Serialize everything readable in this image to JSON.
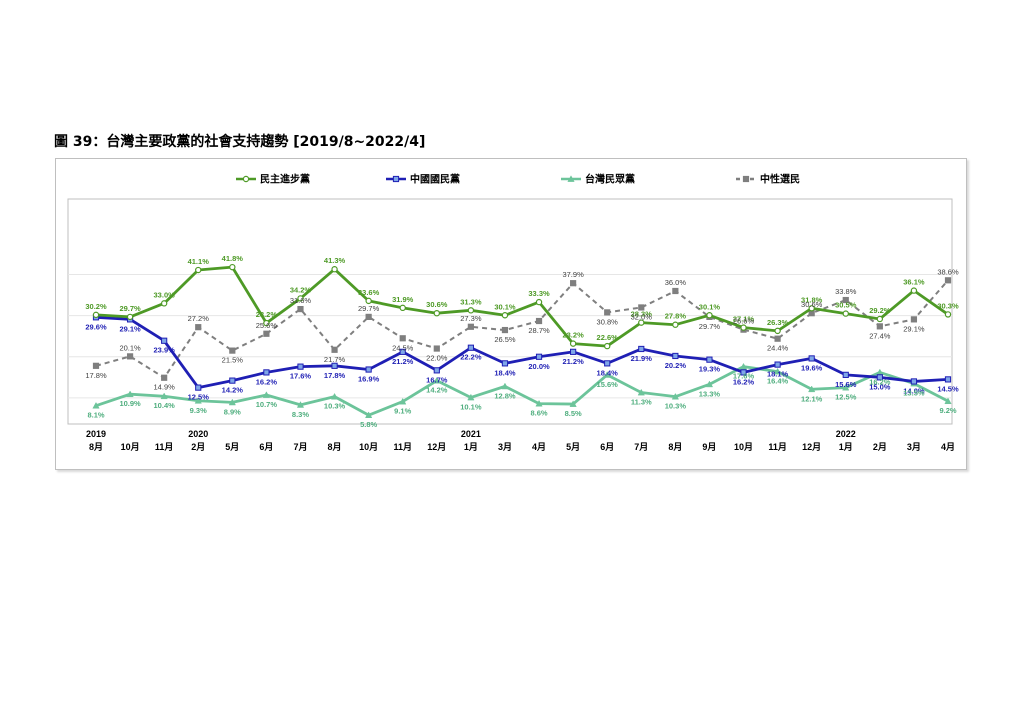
{
  "figure": {
    "title": "圖 39：台灣主要政黨的社會支持趨勢  [2019/8~2022/4]"
  },
  "colors": {
    "dpp": "#4e9a26",
    "kmt": "#1f1fb4",
    "tpp": "#6cc49a",
    "neutral": "#7f7f7f"
  },
  "chart_data": {
    "type": "line",
    "categories": [
      "8月",
      "10月",
      "11月",
      "2月",
      "5月",
      "6月",
      "7月",
      "8月",
      "10月",
      "11月",
      "12月",
      "1月",
      "3月",
      "4月",
      "5月",
      "6月",
      "7月",
      "8月",
      "9月",
      "10月",
      "11月",
      "12月",
      "1月",
      "2月",
      "3月",
      "4月"
    ],
    "year_labels": [
      {
        "index": 0,
        "label": "2019"
      },
      {
        "index": 3,
        "label": "2020"
      },
      {
        "index": 11,
        "label": "2021"
      },
      {
        "index": 22,
        "label": "2022"
      }
    ],
    "ylim": [
      0,
      45
    ],
    "grid": "horizontal",
    "legend_position": "top",
    "series": [
      {
        "name": "民主進步黨",
        "key": "dpp",
        "dash": "solid",
        "marker": "circle",
        "values": [
          30.2,
          29.7,
          33.0,
          41.1,
          41.8,
          28.2,
          34.2,
          41.3,
          33.6,
          31.9,
          30.6,
          31.3,
          30.1,
          33.3,
          23.2,
          22.6,
          28.3,
          27.8,
          30.1,
          27.1,
          26.3,
          31.8,
          30.5,
          29.2,
          36.1,
          30.3
        ],
        "labels": [
          "30.2%",
          "29.7%",
          "33.0%",
          "41.1%",
          "41.8%",
          "28.2%",
          "34.2%",
          "41.3%",
          "33.6%",
          "31.9%",
          "30.6%",
          "31.3%",
          "30.1%",
          "33.3%",
          "23.2%",
          "22.6%",
          "28.3%",
          "27.8%",
          "30.1%",
          "27.1%",
          "26.3%",
          "31.8%",
          "30.5%",
          "29.2%",
          "36.1%",
          "30.3%"
        ]
      },
      {
        "name": "中國國民黨",
        "key": "kmt",
        "dash": "solid",
        "marker": "square",
        "values": [
          29.6,
          29.1,
          23.9,
          12.5,
          14.2,
          16.2,
          17.6,
          17.8,
          16.9,
          21.2,
          16.7,
          22.2,
          18.4,
          20.0,
          21.2,
          18.4,
          21.9,
          20.2,
          19.3,
          16.2,
          18.1,
          19.6,
          15.6,
          15.0,
          14.0,
          14.5
        ],
        "labels": [
          "29.6%",
          "29.1%",
          "23.9%",
          "12.5%",
          "14.2%",
          "16.2%",
          "17.6%",
          "17.8%",
          "16.9%",
          "21.2%",
          "16.7%",
          "22.2%",
          "18.4%",
          "20.0%",
          "21.2%",
          "18.4%",
          "21.9%",
          "20.2%",
          "19.3%",
          "16.2%",
          "18.1%",
          "19.6%",
          "15.6%",
          "15.0%",
          "14.0%",
          "14.5%"
        ]
      },
      {
        "name": "台灣民眾黨",
        "key": "tpp",
        "dash": "solid",
        "marker": "triangle",
        "values": [
          8.1,
          10.9,
          10.4,
          9.3,
          8.9,
          10.7,
          8.3,
          10.3,
          5.8,
          9.1,
          14.2,
          10.1,
          12.8,
          8.6,
          8.5,
          15.6,
          11.3,
          10.3,
          13.3,
          17.6,
          16.4,
          12.1,
          12.5,
          16.2,
          13.5,
          9.2
        ],
        "labels": [
          "8.1%",
          "10.9%",
          "10.4%",
          "9.3%",
          "8.9%",
          "10.7%",
          "8.3%",
          "10.3%",
          "5.8%",
          "9.1%",
          "14.2%",
          "10.1%",
          "12.8%",
          "8.6%",
          "8.5%",
          "15.6%",
          "11.3%",
          "10.3%",
          "13.3%",
          "17.6%",
          "16.4%",
          "12.1%",
          "12.5%",
          "16.2%",
          "13.5%",
          "9.2%"
        ]
      },
      {
        "name": "中性選民",
        "key": "neutral",
        "dash": "dashed",
        "marker": "square",
        "values": [
          17.8,
          20.1,
          14.9,
          27.2,
          21.5,
          25.6,
          31.6,
          21.7,
          29.7,
          24.5,
          22.0,
          27.3,
          26.5,
          28.7,
          37.9,
          30.8,
          32.0,
          36.0,
          29.7,
          26.6,
          24.4,
          30.6,
          33.8,
          27.4,
          29.1,
          38.6
        ],
        "labels": [
          "17.8%",
          "20.1%",
          "14.9%",
          "27.2%",
          "21.5%",
          "25.6%",
          "31.6%",
          "21.7%",
          "29.7%",
          "24.5%",
          "22.0%",
          "27.3%",
          "26.5%",
          "28.7%",
          "37.9%",
          "30.8%",
          "32.0%",
          "36.0%",
          "29.7%",
          "26.6%",
          "24.4%",
          "30.6%",
          "33.8%",
          "27.4%",
          "29.1%",
          "38.6%"
        ]
      }
    ]
  }
}
